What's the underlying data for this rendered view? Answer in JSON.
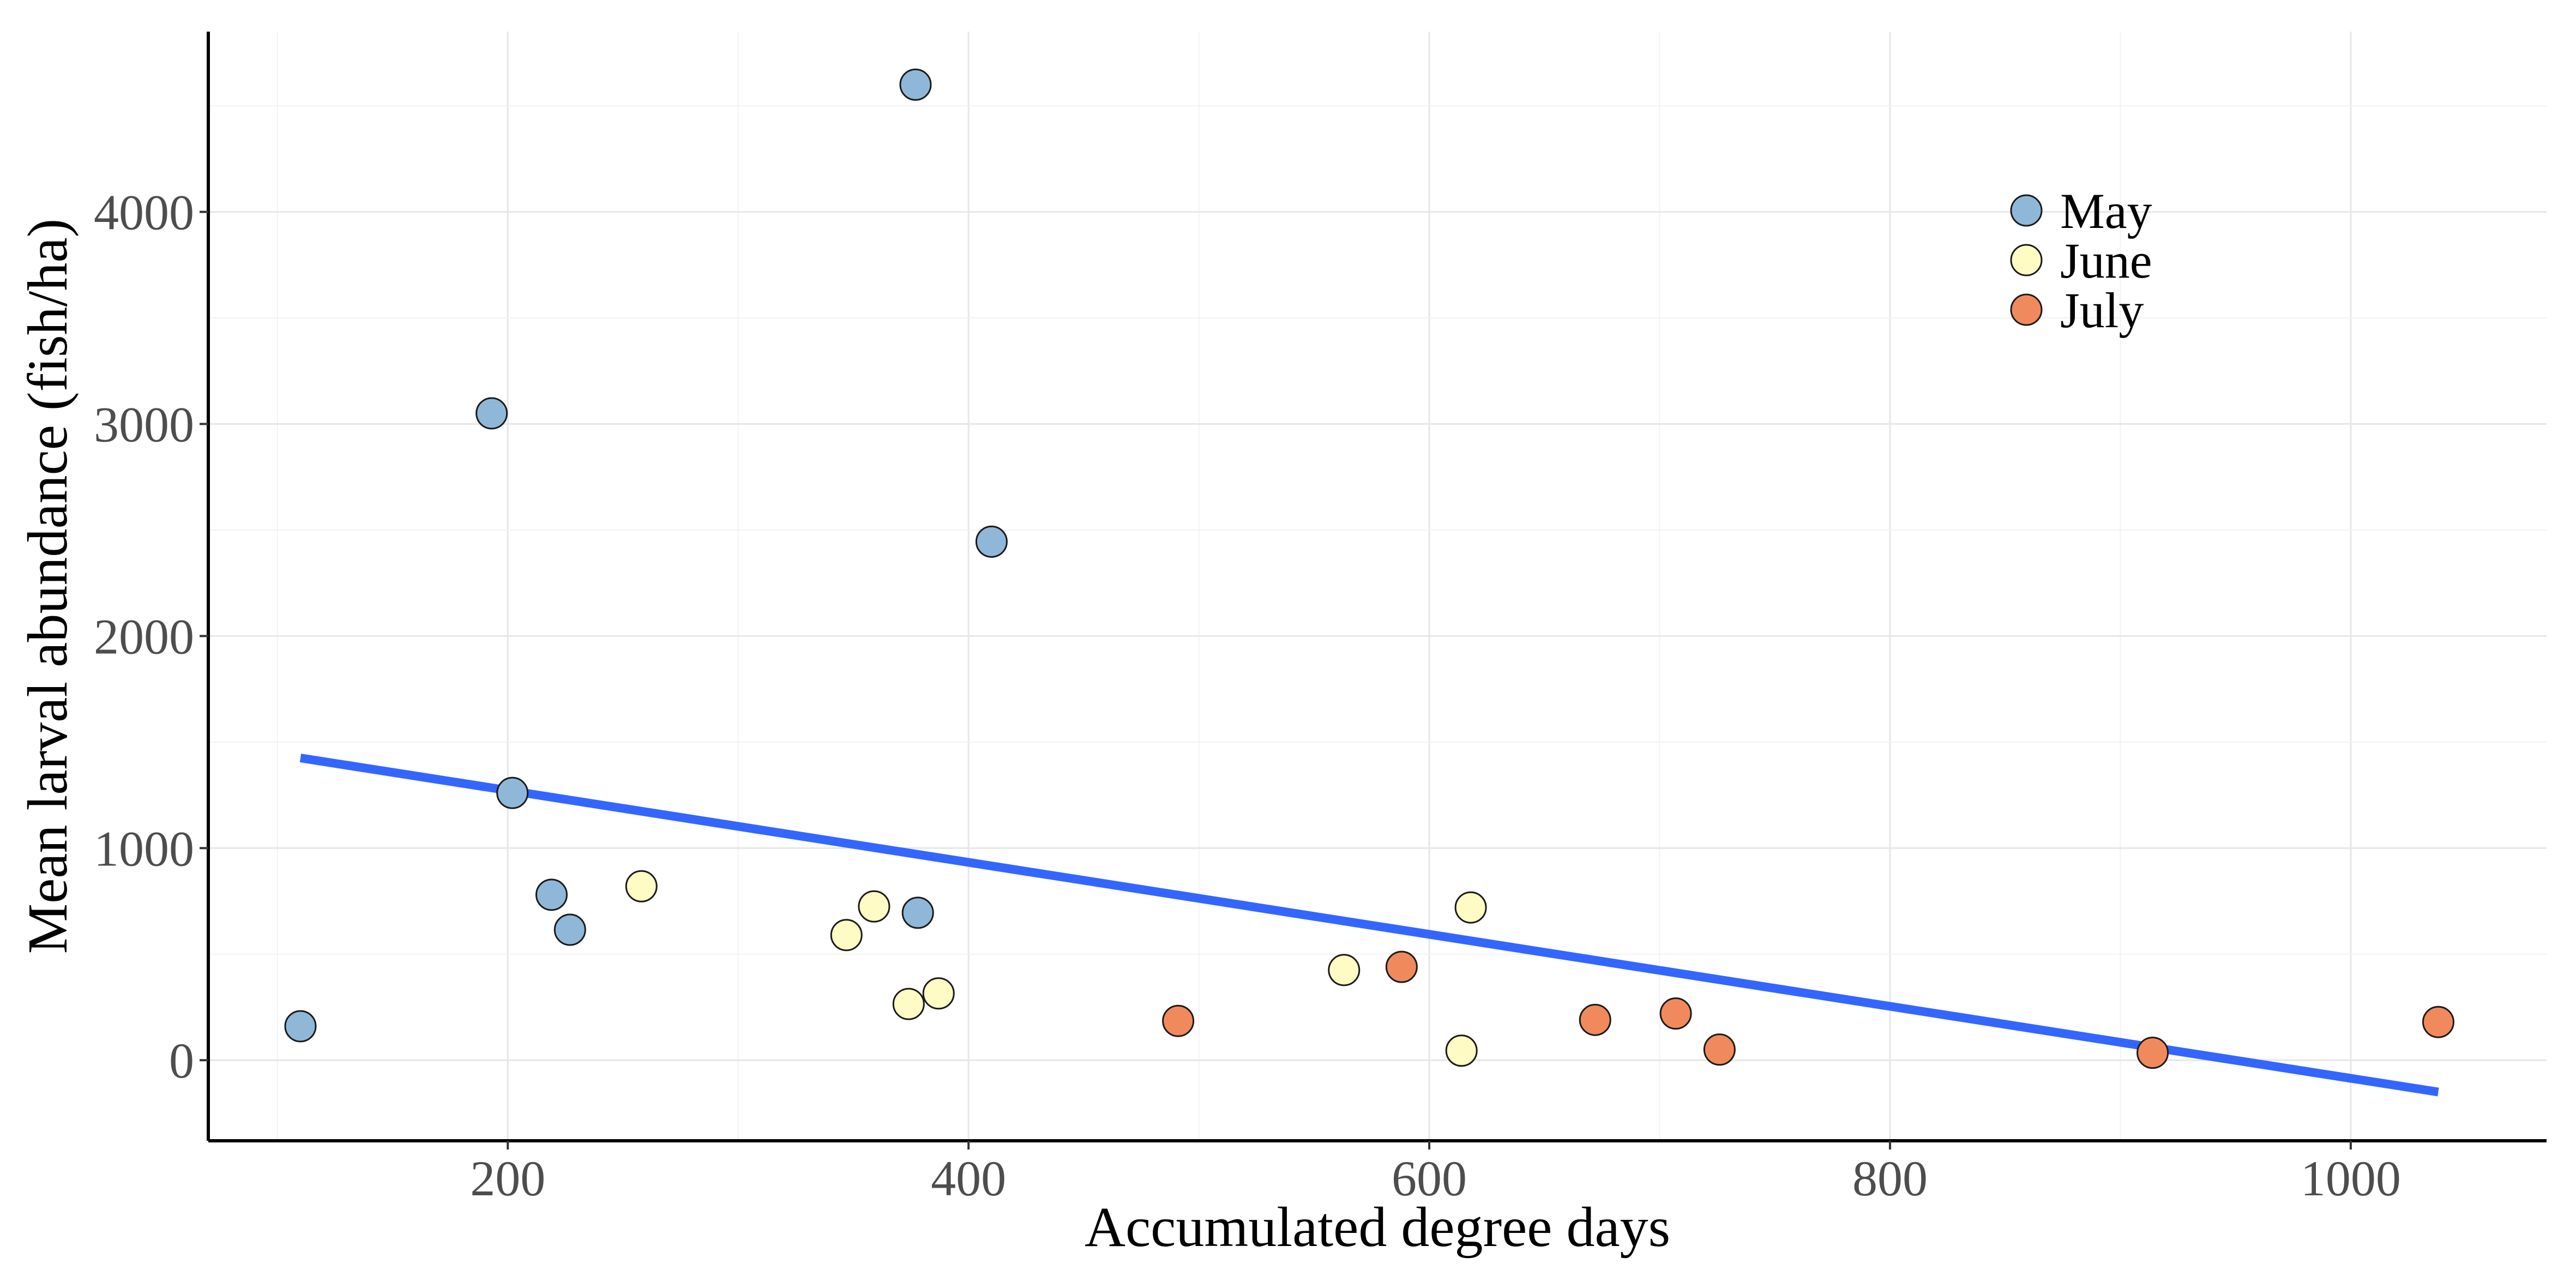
{
  "chart_data": {
    "type": "scatter",
    "xlabel": "Accumulated degree days",
    "ylabel": "Mean larval abundance (fish/ha)",
    "xlim": [
      70,
      1085
    ],
    "ylim": [
      -380,
      4850
    ],
    "xticks": [
      200,
      400,
      600,
      800,
      1000
    ],
    "yticks": [
      0,
      1000,
      2000,
      3000,
      4000
    ],
    "grid": true,
    "legend_position": "top-right",
    "series": [
      {
        "name": "May",
        "color": "#8fb8d8",
        "points": [
          {
            "x": 110,
            "y": 160
          },
          {
            "x": 193,
            "y": 3050
          },
          {
            "x": 202,
            "y": 1260
          },
          {
            "x": 219,
            "y": 780
          },
          {
            "x": 227,
            "y": 615
          },
          {
            "x": 377,
            "y": 4600
          },
          {
            "x": 378,
            "y": 695
          },
          {
            "x": 410,
            "y": 2445
          }
        ]
      },
      {
        "name": "June",
        "color": "#fffbc4",
        "points": [
          {
            "x": 258,
            "y": 820
          },
          {
            "x": 347,
            "y": 590
          },
          {
            "x": 359,
            "y": 725
          },
          {
            "x": 374,
            "y": 265
          },
          {
            "x": 387,
            "y": 315
          },
          {
            "x": 563,
            "y": 425
          },
          {
            "x": 614,
            "y": 45
          },
          {
            "x": 618,
            "y": 720
          }
        ]
      },
      {
        "name": "July",
        "color": "#f08a5c",
        "points": [
          {
            "x": 491,
            "y": 185
          },
          {
            "x": 588,
            "y": 440
          },
          {
            "x": 672,
            "y": 190
          },
          {
            "x": 707,
            "y": 220
          },
          {
            "x": 726,
            "y": 50
          },
          {
            "x": 914,
            "y": 35
          },
          {
            "x": 1038,
            "y": 180
          }
        ]
      }
    ],
    "trend_line": {
      "color": "#3366ff",
      "x": [
        110,
        1038
      ],
      "y": [
        1425,
        -150
      ]
    }
  }
}
